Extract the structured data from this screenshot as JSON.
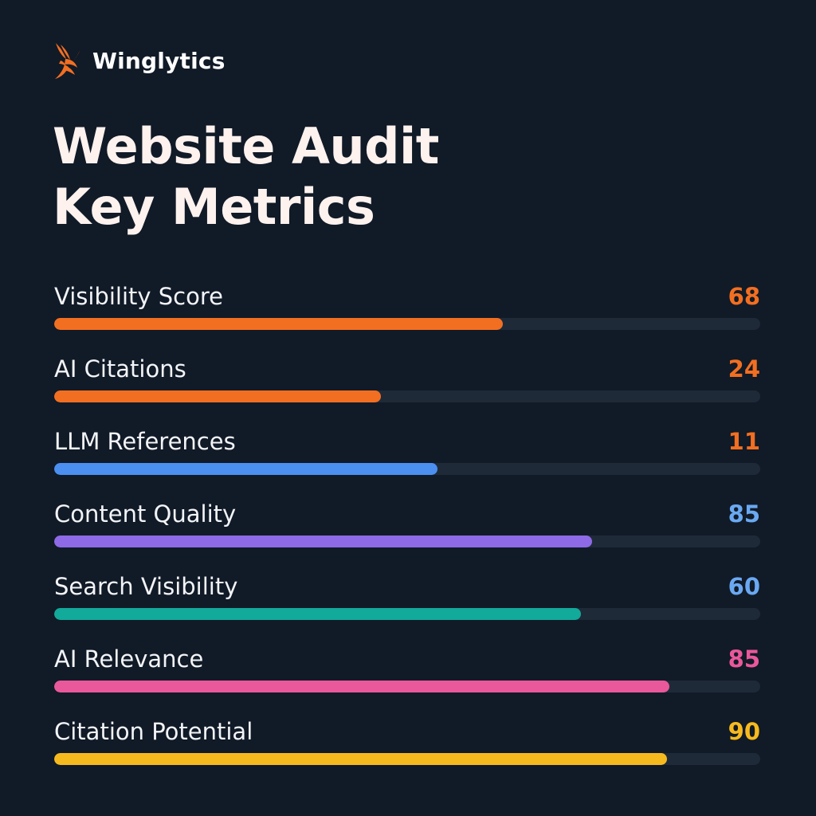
{
  "brand": {
    "name": "Winglytics",
    "logo_icon": "wing-logo-icon",
    "logo_color": "#f26f21"
  },
  "title": {
    "line1": "Website Audit",
    "line2": "Key Metrics"
  },
  "metrics": [
    {
      "label": "Visibility Score",
      "value": "68",
      "fill": 0.635,
      "bar_color": "#f26f21",
      "value_color": "#f26f21"
    },
    {
      "label": "AI Citations",
      "value": "24",
      "fill": 0.463,
      "bar_color": "#f26f21",
      "value_color": "#f26f21"
    },
    {
      "label": "LLM References",
      "value": "11",
      "fill": 0.543,
      "bar_color": "#4b8ff0",
      "value_color": "#f26f21"
    },
    {
      "label": "Content Quality",
      "value": "85",
      "fill": 0.762,
      "bar_color": "#8e6ae6",
      "value_color": "#6aa9f2"
    },
    {
      "label": "Search Visibility",
      "value": "60",
      "fill": 0.746,
      "bar_color": "#12aa9a",
      "value_color": "#6aa9f2"
    },
    {
      "label": "AI Relevance",
      "value": "85",
      "fill": 0.871,
      "bar_color": "#e9589b",
      "value_color": "#e9589b"
    },
    {
      "label": "Citation Potential",
      "value": "90",
      "fill": 0.868,
      "bar_color": "#f7ba1e",
      "value_color": "#f7ba1e"
    }
  ],
  "colors": {
    "background": "#111a27",
    "track": "#1f2a39",
    "title": "#fdf2ee"
  }
}
